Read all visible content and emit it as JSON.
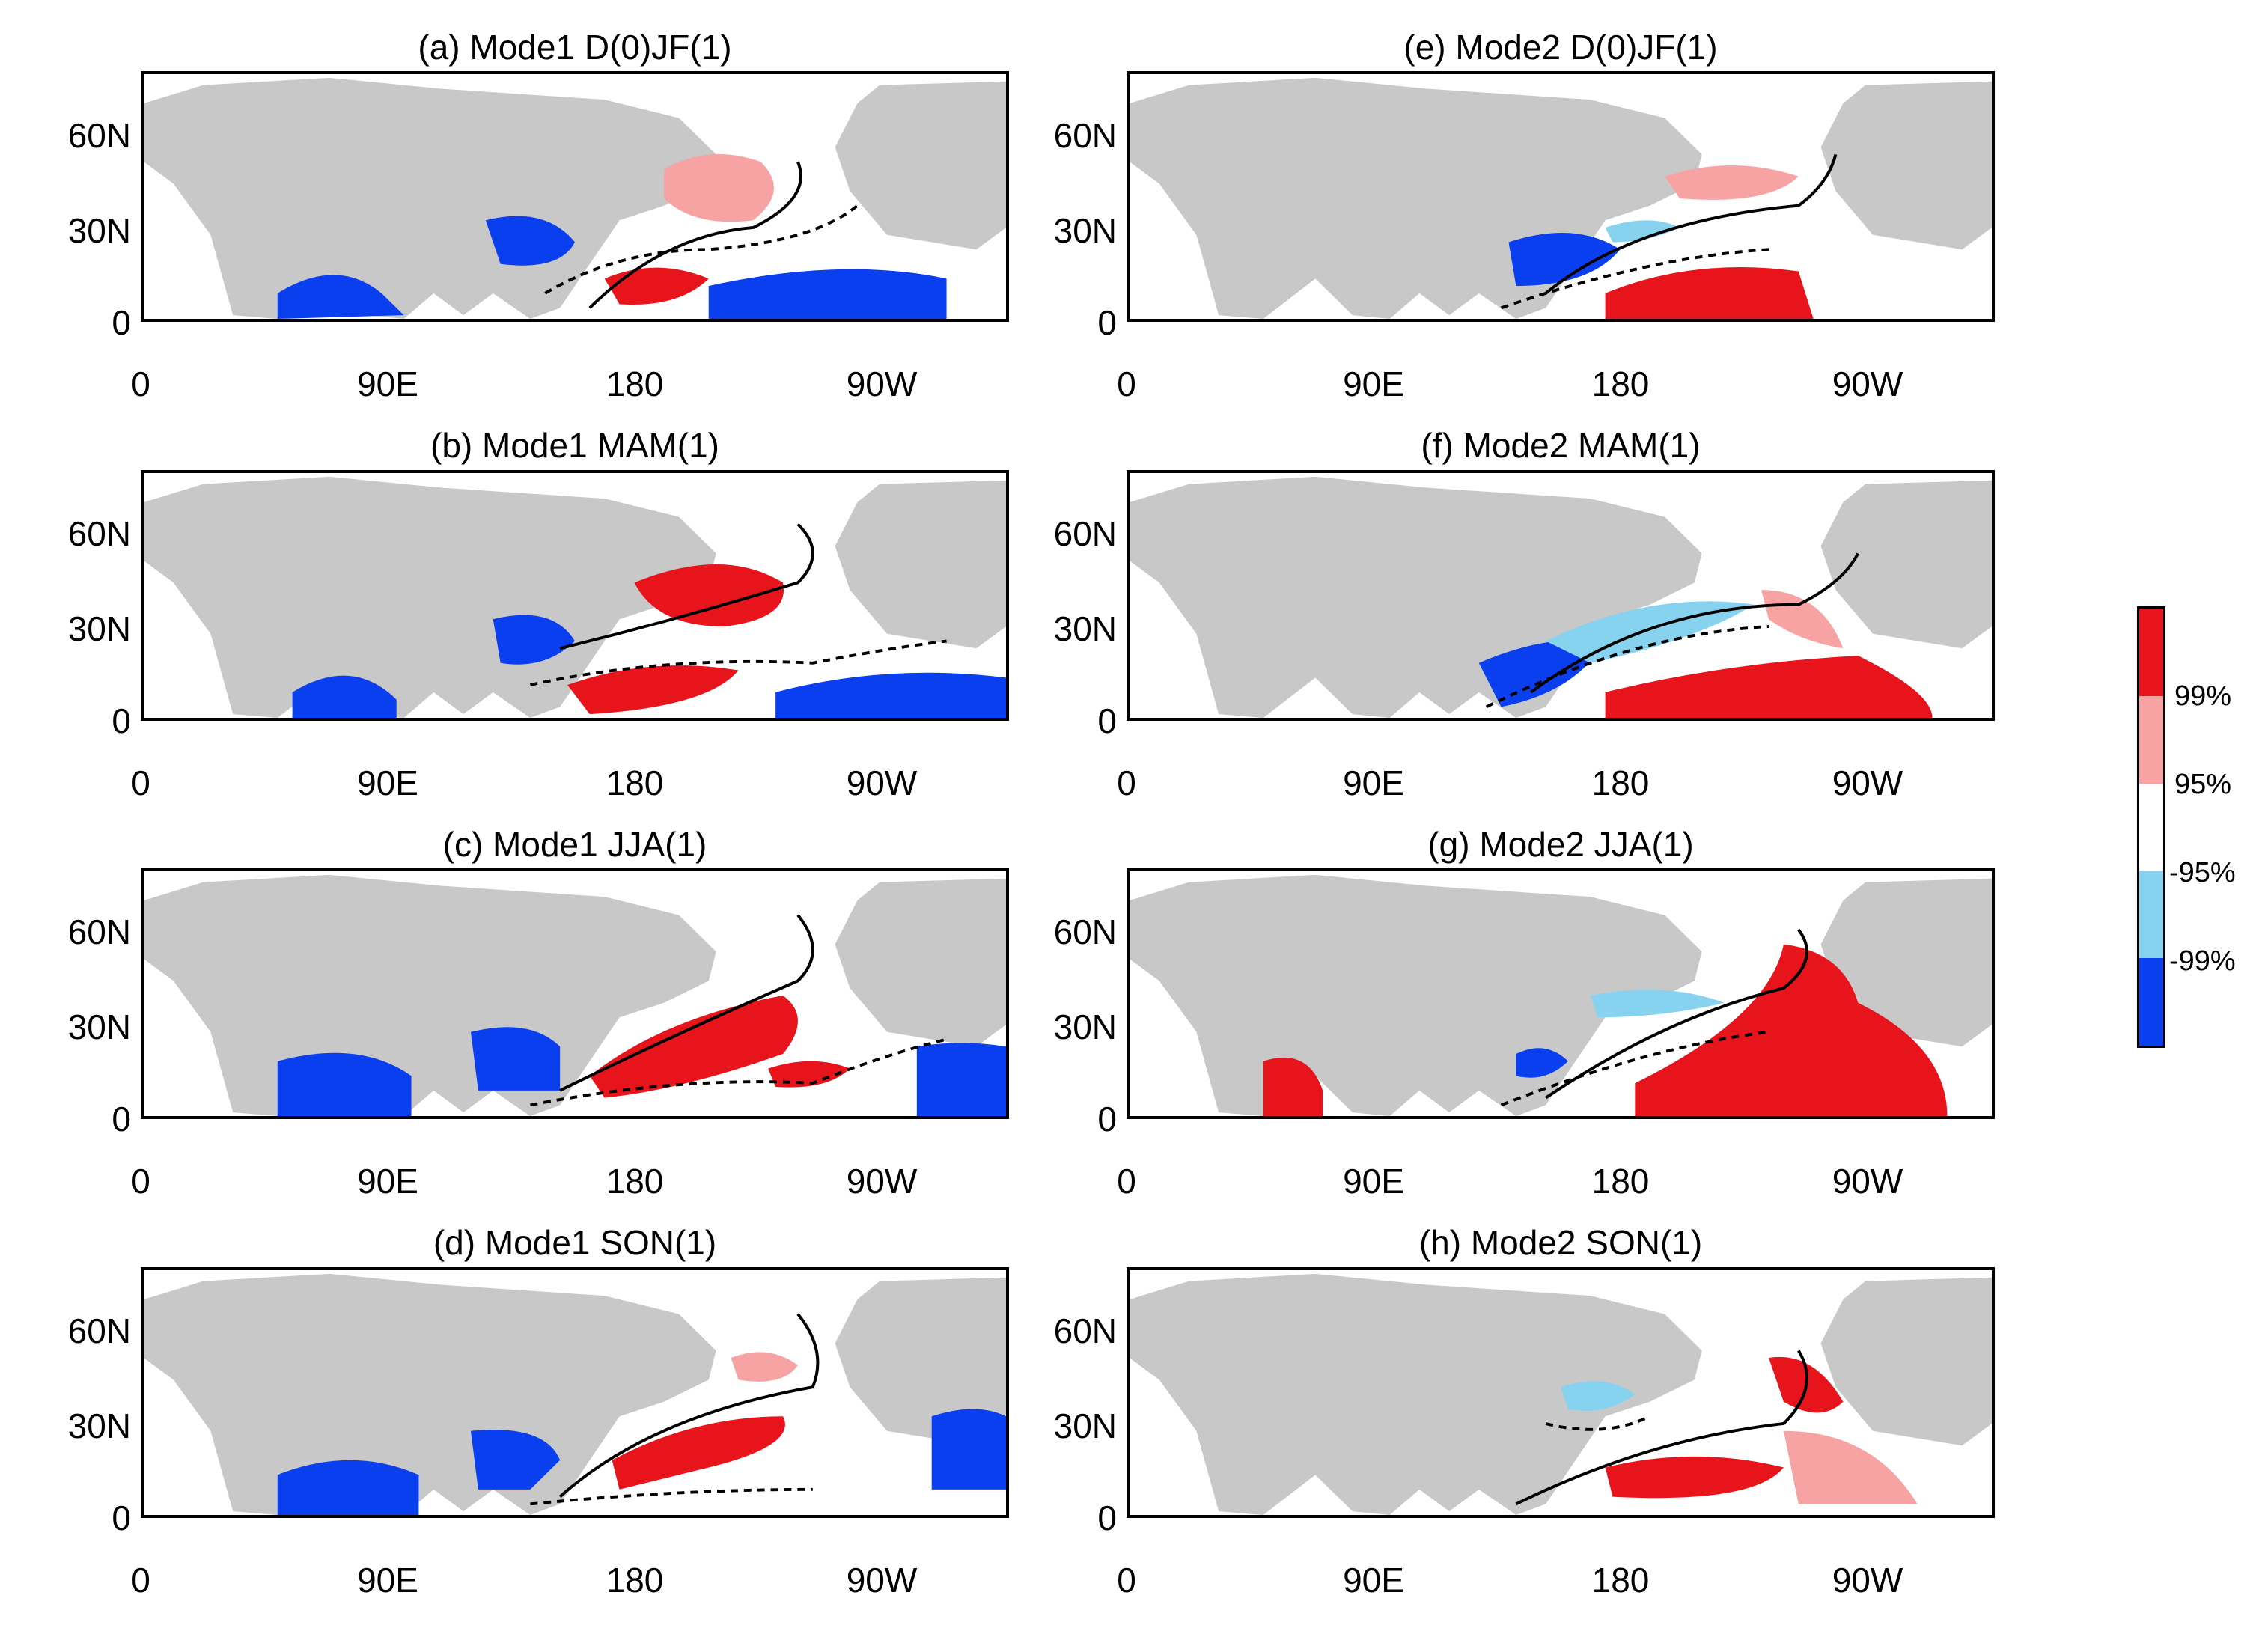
{
  "figure": {
    "panels": [
      {
        "id": "a",
        "title": "(a) Mode1 D(0)JF(1)"
      },
      {
        "id": "b",
        "title": "(b) Mode1 MAM(1)"
      },
      {
        "id": "c",
        "title": "(c) Mode1 JJA(1)"
      },
      {
        "id": "d",
        "title": "(d) Mode1 SON(1)"
      },
      {
        "id": "e",
        "title": "(e) Mode2 D(0)JF(1)"
      },
      {
        "id": "f",
        "title": "(f) Mode2 MAM(1)"
      },
      {
        "id": "g",
        "title": "(g) Mode2 JJA(1)"
      },
      {
        "id": "h",
        "title": "(h) Mode2 SON(1)"
      }
    ],
    "y_ticks": [
      "60N",
      "30N",
      "0"
    ],
    "x_ticks": [
      "0",
      "90E",
      "180",
      "90W"
    ],
    "colorbar": {
      "labels": [
        "99%",
        "95%",
        "-95%",
        "-99%"
      ],
      "colors": [
        "#e8141c",
        "#f7a3a3",
        "#ffffff",
        "#87d3ef",
        "#0a3ff0"
      ]
    },
    "colors": {
      "land": "#c8c8c8",
      "positive_99": "#e8141c",
      "positive_95": "#f7a3a3",
      "negative_95": "#87d3ef",
      "negative_99": "#0a3ff0"
    }
  }
}
